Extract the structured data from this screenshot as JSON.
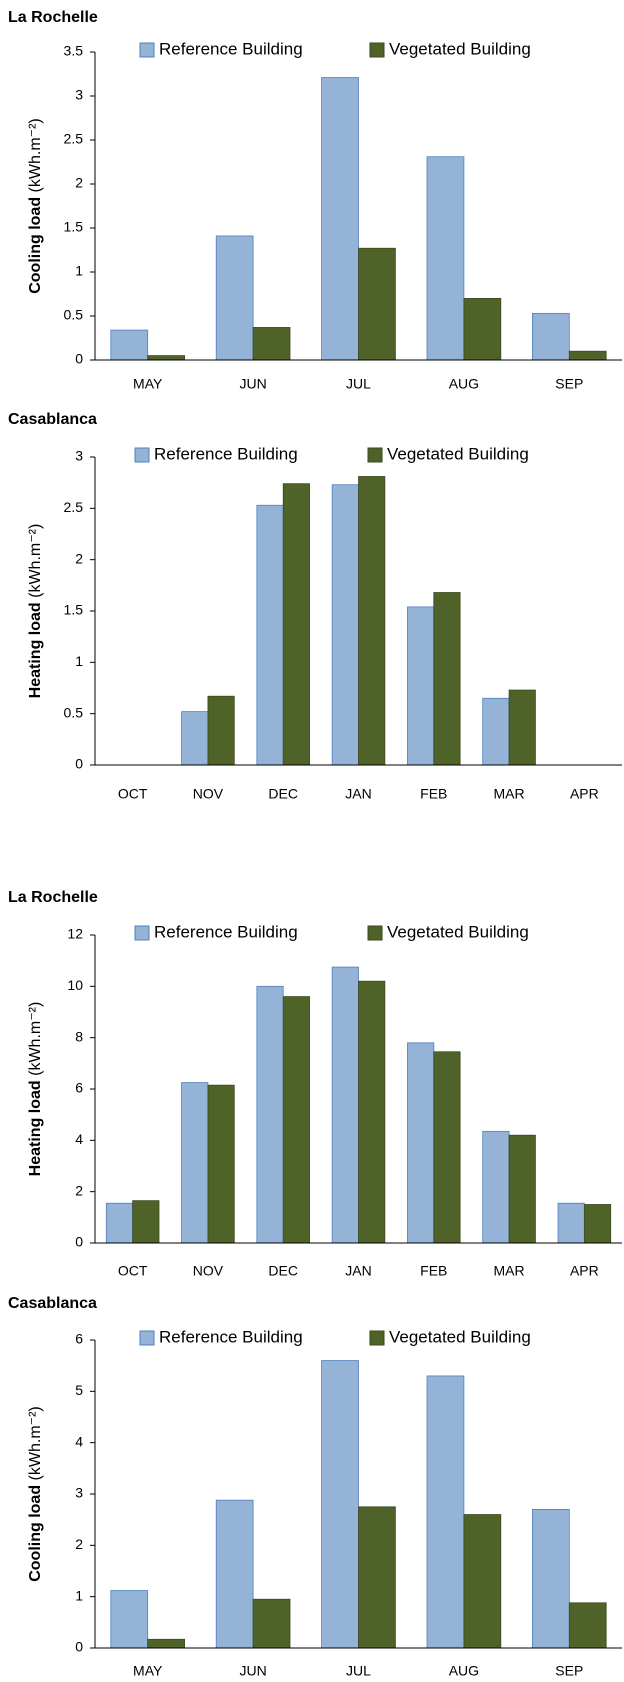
{
  "chart_data": [
    {
      "type": "bar",
      "title": "La Rochelle",
      "y_label": "Cooling load",
      "y_unit": "(kWh.m⁻²)",
      "categories": [
        "MAY",
        "JUN",
        "JUL",
        "AUG",
        "SEP"
      ],
      "series": [
        {
          "name": "Reference Building",
          "color": "#95b3d7",
          "values": [
            0.34,
            1.41,
            3.21,
            2.31,
            0.53
          ]
        },
        {
          "name": "Vegetated Building",
          "color": "#4f6228",
          "values": [
            0.05,
            0.37,
            1.27,
            0.7,
            0.1
          ]
        }
      ],
      "ylim": [
        0,
        3.5
      ],
      "yticks": [
        0,
        0.5,
        1,
        1.5,
        2,
        2.5,
        3,
        3.5
      ],
      "legend": "top"
    },
    {
      "type": "bar",
      "title": "Casablanca",
      "y_label": "Heating load",
      "y_unit": "(kWh.m⁻²)",
      "categories": [
        "OCT",
        "NOV",
        "DEC",
        "JAN",
        "FEB",
        "MAR",
        "APR"
      ],
      "series": [
        {
          "name": "Reference Building",
          "color": "#95b3d7",
          "values": [
            0,
            0.52,
            2.53,
            2.73,
            1.54,
            0.65,
            0
          ]
        },
        {
          "name": "Vegetated Building",
          "color": "#4f6228",
          "values": [
            0,
            0.67,
            2.74,
            2.81,
            1.68,
            0.73,
            0
          ]
        }
      ],
      "ylim": [
        0,
        3
      ],
      "yticks": [
        0,
        0.5,
        1,
        1.5,
        2,
        2.5,
        3
      ],
      "legend": "top"
    },
    {
      "type": "bar",
      "title": "La Rochelle",
      "y_label": "Heating load",
      "y_unit": "(kWh.m⁻²)",
      "categories": [
        "OCT",
        "NOV",
        "DEC",
        "JAN",
        "FEB",
        "MAR",
        "APR"
      ],
      "series": [
        {
          "name": "Reference Building",
          "color": "#95b3d7",
          "values": [
            1.55,
            6.25,
            10.0,
            10.75,
            7.8,
            4.35,
            1.55
          ]
        },
        {
          "name": "Vegetated Building",
          "color": "#4f6228",
          "values": [
            1.65,
            6.15,
            9.6,
            10.2,
            7.45,
            4.2,
            1.5
          ]
        }
      ],
      "ylim": [
        0,
        12
      ],
      "yticks": [
        0,
        2,
        4,
        6,
        8,
        10,
        12
      ],
      "legend": "top"
    },
    {
      "type": "bar",
      "title": "Casablanca",
      "y_label": "Cooling load",
      "y_unit": "(kWh.m⁻²)",
      "categories": [
        "MAY",
        "JUN",
        "JUL",
        "AUG",
        "SEP"
      ],
      "series": [
        {
          "name": "Reference Building",
          "color": "#95b3d7",
          "values": [
            1.12,
            2.88,
            5.6,
            5.3,
            2.7
          ]
        },
        {
          "name": "Vegetated Building",
          "color": "#4f6228",
          "values": [
            0.17,
            0.95,
            2.75,
            2.6,
            0.88
          ]
        }
      ],
      "ylim": [
        0,
        6
      ],
      "yticks": [
        0,
        1,
        2,
        3,
        4,
        5,
        6
      ],
      "legend": "top"
    }
  ]
}
